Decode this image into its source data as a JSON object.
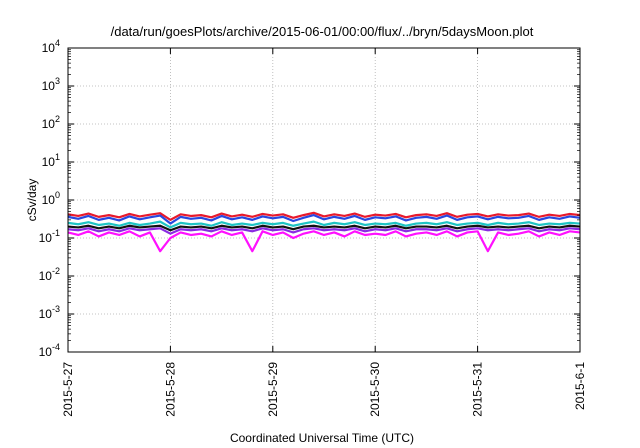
{
  "chart_data": {
    "type": "line",
    "title": "/data/run/goesPlots/archive/2015-06-01/00:00/flux/../bryn/5daysMoon.plot",
    "xlabel": "Coordinated Universal Time (UTC)",
    "ylabel": "cSv/day",
    "yscale": "log",
    "ylim": [
      0.0001,
      10000
    ],
    "y_ticks": [
      {
        "value": 0.0001,
        "mant": "10",
        "exp": "-4"
      },
      {
        "value": 0.001,
        "mant": "10",
        "exp": "-3"
      },
      {
        "value": 0.01,
        "mant": "10",
        "exp": "-2"
      },
      {
        "value": 0.1,
        "mant": "10",
        "exp": "-1"
      },
      {
        "value": 1,
        "mant": "10",
        "exp": "0"
      },
      {
        "value": 10,
        "mant": "10",
        "exp": "1"
      },
      {
        "value": 100,
        "mant": "10",
        "exp": "2"
      },
      {
        "value": 1000,
        "mant": "10",
        "exp": "3"
      },
      {
        "value": 10000,
        "mant": "10",
        "exp": "4"
      }
    ],
    "xlim": [
      "2015-05-27",
      "2015-06-01"
    ],
    "x_ticks": [
      "2015-5-27",
      "2015-5-28",
      "2015-5-29",
      "2015-5-30",
      "2015-5-31",
      "2015-6-1"
    ],
    "grid": true,
    "legend": "none",
    "series": [
      {
        "color": "#e8192c",
        "values": [
          0.42,
          0.38,
          0.44,
          0.36,
          0.4,
          0.35,
          0.43,
          0.37,
          0.41,
          0.45,
          0.3,
          0.42,
          0.38,
          0.4,
          0.35,
          0.44,
          0.37,
          0.41,
          0.36,
          0.43,
          0.39,
          0.42,
          0.34,
          0.4,
          0.46,
          0.37,
          0.42,
          0.38,
          0.44,
          0.36,
          0.41,
          0.39,
          0.43,
          0.35,
          0.4,
          0.42,
          0.38,
          0.45,
          0.36,
          0.41,
          0.43,
          0.37,
          0.42,
          0.39,
          0.4,
          0.44,
          0.36,
          0.41,
          0.38,
          0.43,
          0.4
        ]
      },
      {
        "color": "#2847e0",
        "values": [
          0.36,
          0.32,
          0.38,
          0.3,
          0.34,
          0.29,
          0.37,
          0.31,
          0.35,
          0.39,
          0.24,
          0.36,
          0.32,
          0.34,
          0.29,
          0.38,
          0.31,
          0.35,
          0.3,
          0.37,
          0.33,
          0.36,
          0.28,
          0.34,
          0.4,
          0.31,
          0.36,
          0.32,
          0.38,
          0.3,
          0.35,
          0.33,
          0.37,
          0.29,
          0.34,
          0.36,
          0.32,
          0.39,
          0.3,
          0.35,
          0.37,
          0.31,
          0.36,
          0.33,
          0.34,
          0.38,
          0.3,
          0.35,
          0.32,
          0.37,
          0.34
        ]
      },
      {
        "color": "#1fc4c4",
        "values": [
          0.25,
          0.23,
          0.26,
          0.22,
          0.24,
          0.21,
          0.25,
          0.22,
          0.24,
          0.27,
          0.19,
          0.25,
          0.23,
          0.24,
          0.21,
          0.26,
          0.22,
          0.24,
          0.22,
          0.25,
          0.23,
          0.25,
          0.21,
          0.24,
          0.27,
          0.22,
          0.25,
          0.23,
          0.26,
          0.22,
          0.24,
          0.23,
          0.25,
          0.21,
          0.24,
          0.25,
          0.23,
          0.26,
          0.22,
          0.24,
          0.25,
          0.22,
          0.25,
          0.23,
          0.24,
          0.26,
          0.22,
          0.24,
          0.23,
          0.25,
          0.24
        ]
      },
      {
        "color": "#111111",
        "values": [
          0.2,
          0.19,
          0.21,
          0.18,
          0.2,
          0.18,
          0.21,
          0.19,
          0.2,
          0.21,
          0.16,
          0.2,
          0.19,
          0.2,
          0.18,
          0.21,
          0.19,
          0.2,
          0.18,
          0.21,
          0.19,
          0.2,
          0.17,
          0.2,
          0.21,
          0.19,
          0.2,
          0.19,
          0.21,
          0.18,
          0.2,
          0.19,
          0.21,
          0.18,
          0.2,
          0.2,
          0.19,
          0.21,
          0.18,
          0.2,
          0.21,
          0.19,
          0.2,
          0.19,
          0.2,
          0.21,
          0.18,
          0.2,
          0.19,
          0.21,
          0.2
        ]
      },
      {
        "color": "#8a2be2",
        "values": [
          0.17,
          0.16,
          0.18,
          0.15,
          0.17,
          0.15,
          0.18,
          0.16,
          0.17,
          0.18,
          0.13,
          0.17,
          0.16,
          0.17,
          0.15,
          0.18,
          0.16,
          0.17,
          0.15,
          0.18,
          0.16,
          0.17,
          0.14,
          0.17,
          0.18,
          0.16,
          0.17,
          0.16,
          0.18,
          0.15,
          0.17,
          0.16,
          0.18,
          0.15,
          0.17,
          0.17,
          0.16,
          0.18,
          0.15,
          0.17,
          0.18,
          0.16,
          0.17,
          0.16,
          0.17,
          0.18,
          0.15,
          0.17,
          0.16,
          0.18,
          0.17
        ]
      },
      {
        "color": "#ff10ff",
        "values": [
          0.14,
          0.12,
          0.15,
          0.11,
          0.14,
          0.12,
          0.15,
          0.11,
          0.14,
          0.045,
          0.1,
          0.14,
          0.12,
          0.13,
          0.11,
          0.15,
          0.12,
          0.14,
          0.045,
          0.15,
          0.12,
          0.14,
          0.1,
          0.13,
          0.15,
          0.12,
          0.14,
          0.11,
          0.15,
          0.12,
          0.13,
          0.12,
          0.15,
          0.11,
          0.13,
          0.14,
          0.12,
          0.15,
          0.11,
          0.14,
          0.15,
          0.045,
          0.14,
          0.12,
          0.13,
          0.15,
          0.11,
          0.14,
          0.12,
          0.15,
          0.14
        ]
      }
    ]
  }
}
